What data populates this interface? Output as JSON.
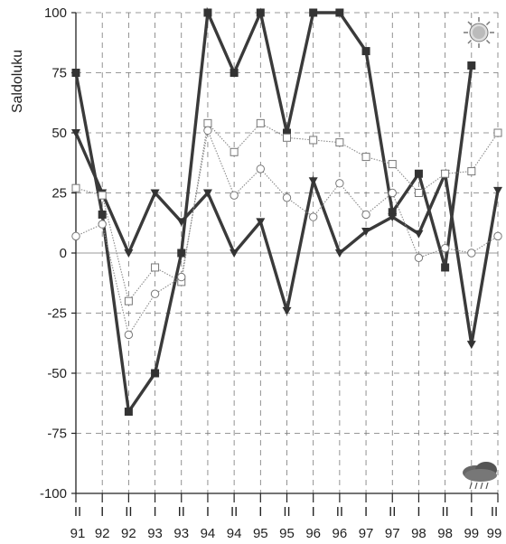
{
  "chart_data": {
    "type": "line",
    "ylabel": "Saldoluku",
    "ylim": [
      -100,
      100
    ],
    "yticks": [
      100,
      75,
      50,
      25,
      0,
      -25,
      -50,
      -75,
      -100
    ],
    "categories": [
      {
        "half": "II",
        "year": "91"
      },
      {
        "half": "I",
        "year": "92"
      },
      {
        "half": "II",
        "year": "92"
      },
      {
        "half": "I",
        "year": "93"
      },
      {
        "half": "II",
        "year": "93"
      },
      {
        "half": "I",
        "year": "94"
      },
      {
        "half": "II",
        "year": "94"
      },
      {
        "half": "I",
        "year": "95"
      },
      {
        "half": "II",
        "year": "95"
      },
      {
        "half": "I",
        "year": "96"
      },
      {
        "half": "II",
        "year": "96"
      },
      {
        "half": "I",
        "year": "97"
      },
      {
        "half": "II",
        "year": "97"
      },
      {
        "half": "I",
        "year": "98"
      },
      {
        "half": "II",
        "year": "98"
      },
      {
        "half": "I",
        "year": "99"
      },
      {
        "half": "II",
        "year": "99"
      }
    ],
    "grid": true,
    "legend": "none",
    "series": [
      {
        "style": "thick-square",
        "color": "#3a3a3a",
        "values": [
          75,
          16,
          -66,
          -50,
          0,
          100,
          75,
          100,
          50,
          100,
          100,
          84,
          17,
          33,
          -6,
          78,
          null
        ]
      },
      {
        "style": "thick-triangle",
        "color": "#3a3a3a",
        "values": [
          50,
          25,
          0,
          25,
          13,
          25,
          0,
          13,
          -24,
          30,
          0,
          9,
          15,
          8,
          33,
          -38,
          26
        ]
      },
      {
        "style": "thin-open-square",
        "color": "#8a8a8a",
        "values": [
          27,
          24,
          -20,
          -6,
          -12,
          54,
          42,
          54,
          48,
          47,
          46,
          40,
          37,
          25,
          33,
          34,
          50
        ]
      },
      {
        "style": "thin-open-circle",
        "color": "#8a8a8a",
        "values": [
          7,
          12,
          -34,
          -17,
          -10,
          51,
          24,
          35,
          23,
          15,
          29,
          16,
          25,
          -2,
          2,
          0,
          7
        ]
      }
    ],
    "icons": [
      "sun-icon",
      "rain-cloud-icon"
    ]
  }
}
